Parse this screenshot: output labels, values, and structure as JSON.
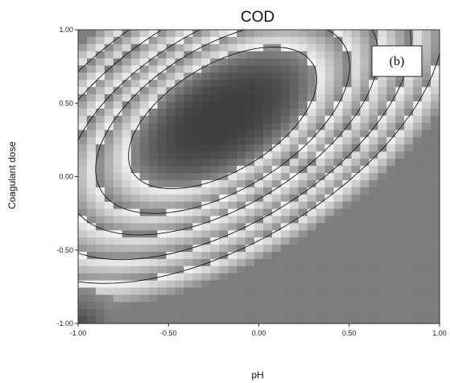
{
  "chart_data": {
    "type": "heatmap",
    "subtype": "response-surface contour plot",
    "title": "COD",
    "xlabel": "pH",
    "ylabel": "Coagulant dose",
    "xlim": [
      -1.0,
      1.0
    ],
    "ylim": [
      -1.0,
      1.0
    ],
    "x_ticks": [
      "-1.00",
      "-0.50",
      "0.00",
      "0.50",
      "1.00"
    ],
    "y_ticks": [
      "-1.00",
      "-0.50",
      "0.00",
      "0.50",
      "1.00"
    ],
    "annotation": "(b)",
    "colors": {
      "dark": "#3f3f3f",
      "light": "#f4f4f4",
      "contour": "#1a1a1a"
    },
    "surface": {
      "center": [
        -0.2,
        0.4
      ],
      "a": 0.35,
      "b": 0.3,
      "c": 0.3
    },
    "contour_levels": [
      0.55,
      1.0,
      1.5,
      2.2,
      3.0
    ]
  }
}
